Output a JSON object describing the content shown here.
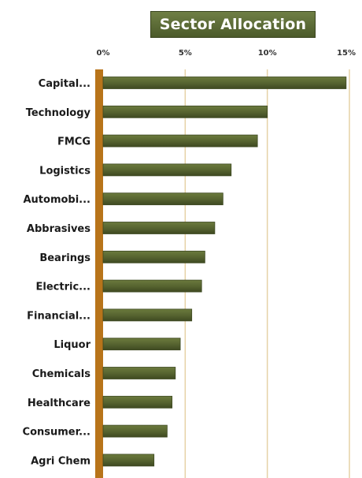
{
  "chart_data": {
    "type": "bar",
    "orientation": "horizontal",
    "title": "Sector Allocation",
    "xlabel": "",
    "ylabel": "",
    "xlim": [
      0,
      15
    ],
    "x_ticks": [
      "0%",
      "5%",
      "10%",
      "15%"
    ],
    "categories": [
      "Capital...",
      "Technology",
      "FMCG",
      "Logistics",
      "Automobi...",
      "Abbrasives",
      "Bearings",
      "Electric...",
      "Financial...",
      "Liquor",
      "Chemicals",
      "Healthcare",
      "Consumer...",
      "Agri Chem"
    ],
    "values": [
      14.8,
      10.0,
      9.4,
      7.8,
      7.3,
      6.8,
      6.2,
      6.0,
      5.4,
      4.7,
      4.4,
      4.2,
      3.9,
      3.1
    ],
    "unit": "%",
    "grid": true,
    "legend": "none",
    "colors": {
      "bar": "#55622f",
      "bar_dark": "#3e4921",
      "axis": "#b8741a",
      "grid": "#e6d2a6"
    }
  }
}
